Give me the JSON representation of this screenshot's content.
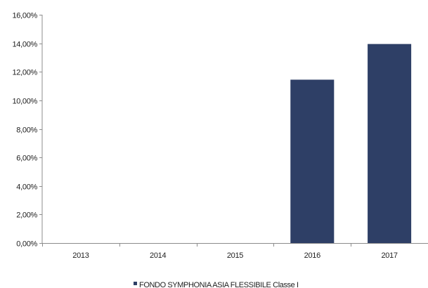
{
  "chart_data": {
    "type": "bar",
    "categories": [
      "2013",
      "2014",
      "2015",
      "2016",
      "2017"
    ],
    "series": [
      {
        "name": "FONDO SYMPHONIA ASIA FLESSIBILE Classe I",
        "values": [
          null,
          null,
          null,
          11.45,
          13.95
        ],
        "color": "#2e3f66"
      }
    ],
    "ylim": [
      0,
      16
    ],
    "yticks": [
      0,
      2,
      4,
      6,
      8,
      10,
      12,
      14,
      16
    ],
    "ytick_labels": [
      "0,00%",
      "2,00%",
      "4,00%",
      "6,00%",
      "8,00%",
      "10,00%",
      "12,00%",
      "14,00%",
      "16,00%"
    ],
    "grid": false,
    "legend_position": "bottom-center",
    "title": "",
    "xlabel": "",
    "ylabel": ""
  }
}
